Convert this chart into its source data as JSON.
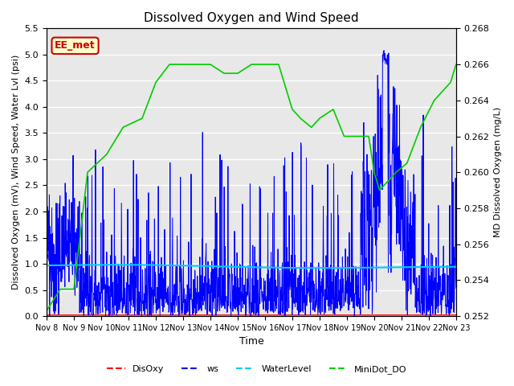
{
  "title": "Dissolved Oxygen and Wind Speed",
  "xlabel": "Time",
  "ylabel_left": "Dissolved Oxygen (mV), Wind Speed, Water Lvl (psi)",
  "ylabel_right": "MD Dissolved Oxygen (mg/L)",
  "ylim_left": [
    0.0,
    5.5
  ],
  "ylim_right": [
    0.252,
    0.268
  ],
  "xtick_labels": [
    "Nov 8",
    "Nov 9",
    "Nov 10",
    "Nov 11",
    "Nov 12",
    "Nov 13",
    "Nov 14",
    "Nov 15",
    "Nov 16",
    "Nov 17",
    "Nov 18",
    "Nov 19",
    "Nov 20",
    "Nov 21",
    "Nov 22",
    "Nov 23"
  ],
  "legend_labels": [
    "DisOxy",
    "ws",
    "WaterLevel",
    "MiniDot_DO"
  ],
  "legend_colors": [
    "#ff0000",
    "#0000ff",
    "#00ccff",
    "#00cc00"
  ],
  "annotation_text": "EE_met",
  "annotation_color": "#cc0000",
  "bg_color": "#e8e8e8",
  "grid_color": "#ffffff"
}
